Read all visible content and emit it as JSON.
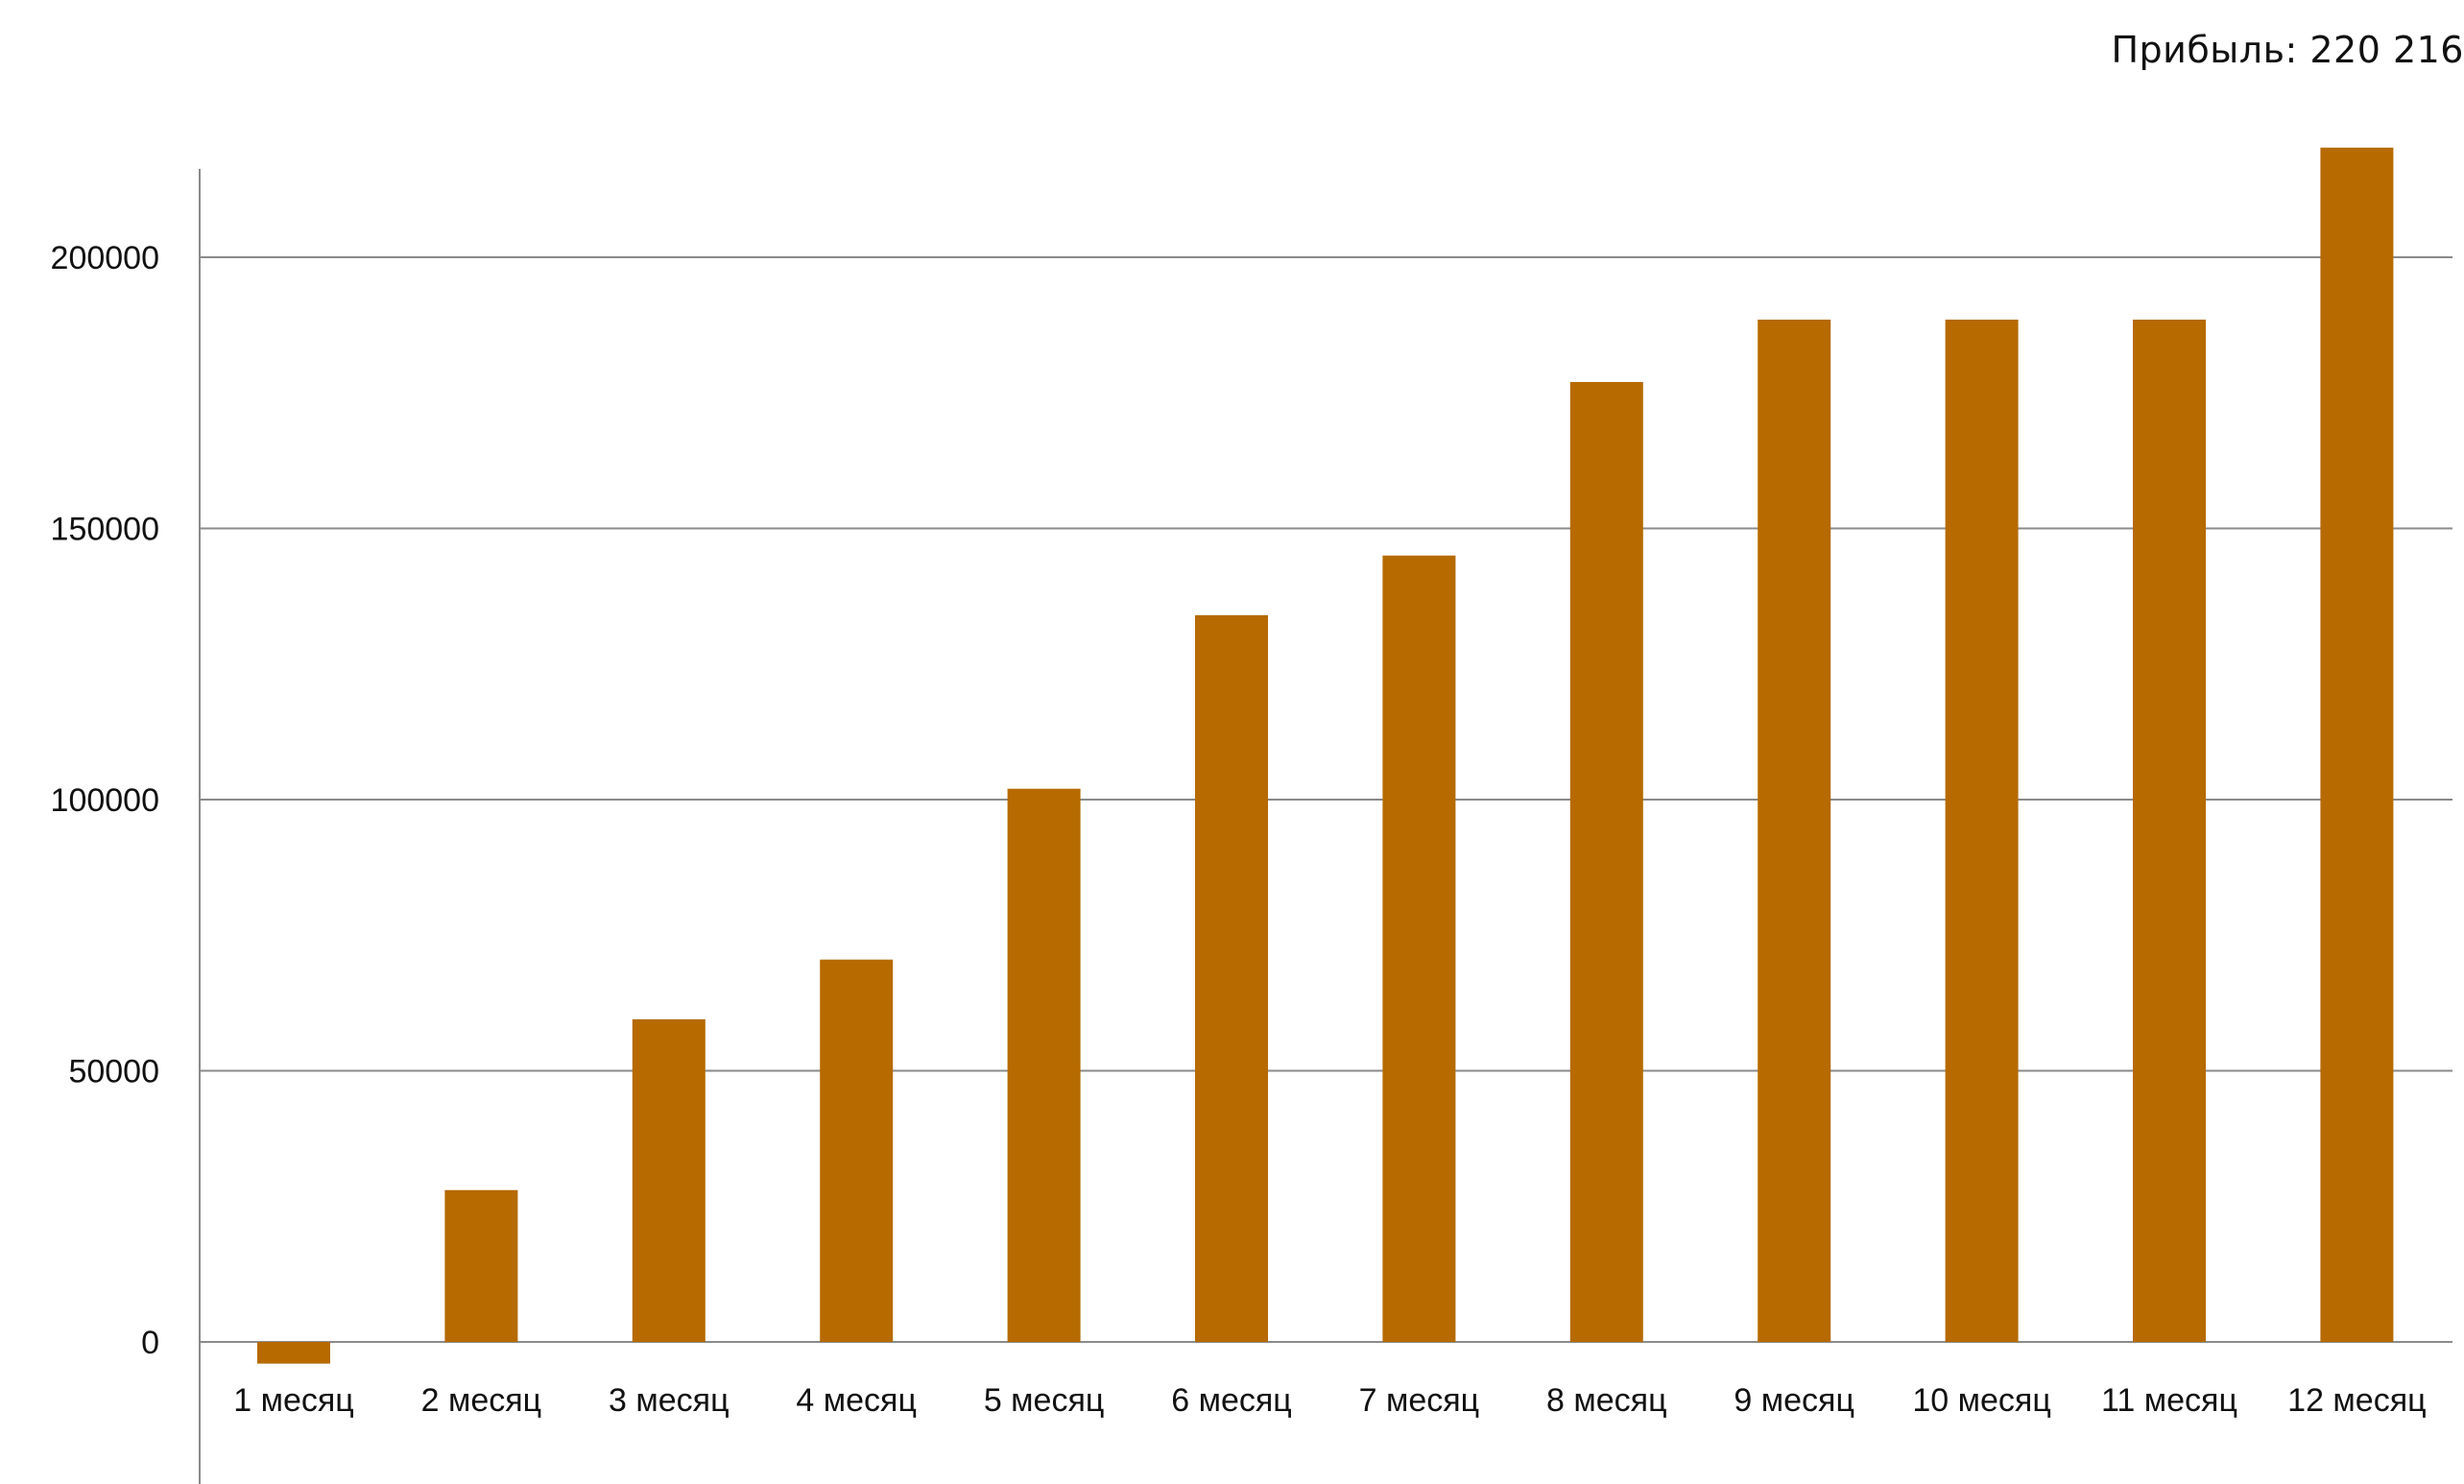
{
  "profit_label": "Прибыль: 220 216",
  "colors": {
    "bar": "#B66A00",
    "grid": "#8A8A8A",
    "axis": "#8A8A8A",
    "text": "#111111",
    "background": "#FFFFFF"
  },
  "chart_data": {
    "type": "bar",
    "title": "",
    "xlabel": "",
    "ylabel": "",
    "categories": [
      "1 месяц",
      "2 месяц",
      "3 месяц",
      "4 месяц",
      "5 месяц",
      "6 месяц",
      "7 месяц",
      "8 месяц",
      "9 месяц",
      "10  месяц",
      "11 месяц",
      "12 месяц"
    ],
    "values": [
      -4000,
      28000,
      59500,
      70500,
      102000,
      134000,
      145000,
      177000,
      188500,
      188500,
      188500,
      220216
    ],
    "ylim": [
      -25000,
      220216
    ],
    "yticks": [
      0,
      50000,
      100000,
      150000,
      200000
    ],
    "ytick_labels": [
      "0",
      "50000",
      "100000",
      "150000",
      "200000"
    ],
    "grid": true,
    "legend": "none"
  }
}
